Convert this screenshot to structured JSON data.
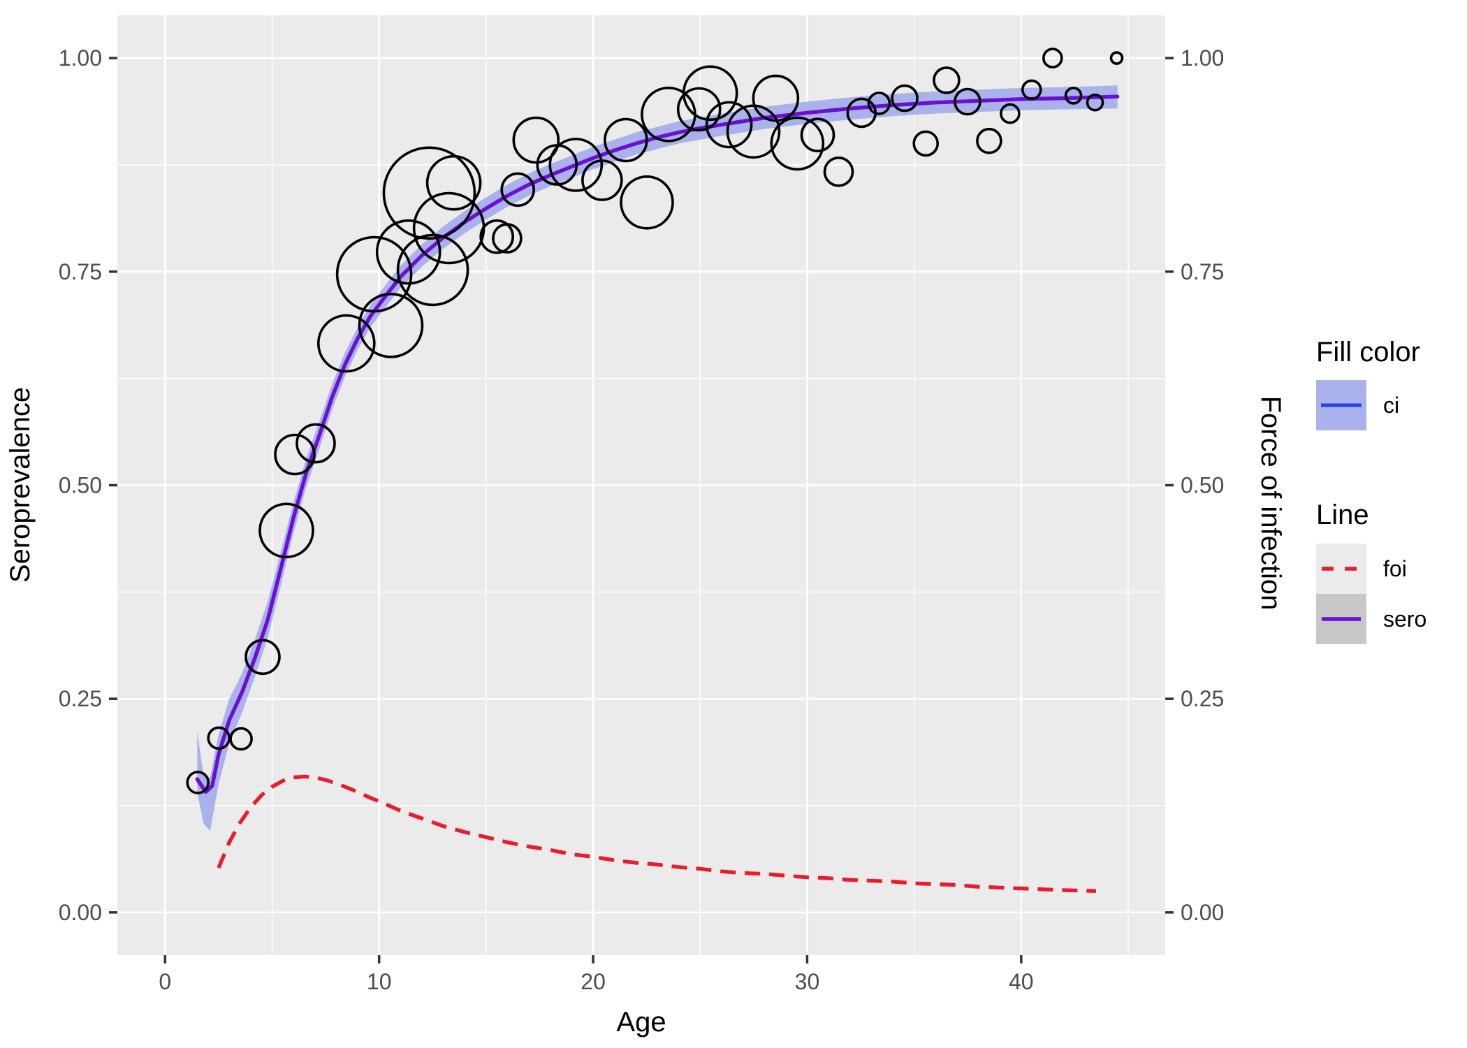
{
  "chart_data": {
    "type": "scatter",
    "description": "Seroprevalence bubbles with fitted sero curve, confidence ribbon and force-of-infection dashed curve",
    "xlabel": "Age",
    "ylabel_left": "Seroprevalence",
    "ylabel_right": "Force of infection",
    "xlim": [
      -2.23,
      46.73
    ],
    "ylim": [
      -0.05,
      1.05
    ],
    "x_ticks": [
      0,
      10,
      20,
      30,
      40
    ],
    "x_tick_labels": [
      "0",
      "10",
      "20",
      "30",
      "40"
    ],
    "x_minor_ticks": [
      5,
      15,
      25,
      35,
      45
    ],
    "y_ticks": [
      0,
      0.25,
      0.5,
      0.75,
      1
    ],
    "y_tick_labels": [
      "0.00",
      "0.25",
      "0.50",
      "0.75",
      "1.00"
    ],
    "y_minor_ticks": [
      0.125,
      0.375,
      0.625,
      0.875
    ],
    "grid": true,
    "legend_position": "right",
    "colors": {
      "panel_bg": "#EBEBEB",
      "grid_major": "#FFFFFF",
      "grid_minor": "#FFFFFF",
      "tick_mark": "#333333",
      "tick_label": "#4D4D4D",
      "axis_title": "#000000",
      "bubble_stroke": "#000000",
      "ribbon_fill": "#A9B2EA",
      "sero_line": "#6B0FD3",
      "foi_line": "#EA1B2C",
      "ci_key_line": "#2E41E0",
      "ci_key_fill": "#A9B2EA",
      "foi_key_bg": "#EBEBEB",
      "sero_key_bg": "#C7C7C7"
    },
    "legend": {
      "fill_title": "Fill color",
      "fill_items": [
        {
          "label": "ci"
        }
      ],
      "line_title": "Line",
      "line_items": [
        {
          "label": "foi",
          "style": "dashed",
          "color": "#EA1B2C"
        },
        {
          "label": "sero",
          "style": "solid",
          "color": "#6B0FD3"
        }
      ]
    },
    "bubbles": [
      {
        "age": 1.53,
        "sero": 0.152,
        "r": 15
      },
      {
        "age": 2.51,
        "sero": 0.204,
        "r": 15
      },
      {
        "age": 3.55,
        "sero": 0.203,
        "r": 15
      },
      {
        "age": 4.56,
        "sero": 0.299,
        "r": 24
      },
      {
        "age": 5.67,
        "sero": 0.447,
        "r": 38
      },
      {
        "age": 6.06,
        "sero": 0.536,
        "r": 28
      },
      {
        "age": 7.04,
        "sero": 0.549,
        "r": 27
      },
      {
        "age": 8.47,
        "sero": 0.666,
        "r": 40
      },
      {
        "age": 9.77,
        "sero": 0.747,
        "r": 53
      },
      {
        "age": 10.55,
        "sero": 0.687,
        "r": 45
      },
      {
        "age": 11.37,
        "sero": 0.773,
        "r": 45
      },
      {
        "age": 12.34,
        "sero": 0.842,
        "r": 65
      },
      {
        "age": 13.49,
        "sero": 0.854,
        "r": 38
      },
      {
        "age": 13.26,
        "sero": 0.801,
        "r": 50
      },
      {
        "age": 12.51,
        "sero": 0.752,
        "r": 50
      },
      {
        "age": 15.5,
        "sero": 0.791,
        "r": 23
      },
      {
        "age": 15.98,
        "sero": 0.789,
        "r": 20
      },
      {
        "age": 16.48,
        "sero": 0.846,
        "r": 23
      },
      {
        "age": 17.33,
        "sero": 0.904,
        "r": 32
      },
      {
        "age": 18.31,
        "sero": 0.875,
        "r": 28
      },
      {
        "age": 19.19,
        "sero": 0.875,
        "r": 37
      },
      {
        "age": 20.42,
        "sero": 0.857,
        "r": 28
      },
      {
        "age": 21.53,
        "sero": 0.904,
        "r": 30
      },
      {
        "age": 22.51,
        "sero": 0.831,
        "r": 37
      },
      {
        "age": 23.52,
        "sero": 0.934,
        "r": 38
      },
      {
        "age": 24.95,
        "sero": 0.94,
        "r": 30
      },
      {
        "age": 25.47,
        "sero": 0.959,
        "r": 38
      },
      {
        "age": 26.35,
        "sero": 0.922,
        "r": 32
      },
      {
        "age": 27.49,
        "sero": 0.914,
        "r": 37
      },
      {
        "age": 28.53,
        "sero": 0.953,
        "r": 32
      },
      {
        "age": 29.54,
        "sero": 0.9,
        "r": 37
      },
      {
        "age": 30.49,
        "sero": 0.91,
        "r": 23
      },
      {
        "age": 31.47,
        "sero": 0.867,
        "r": 20
      },
      {
        "age": 32.54,
        "sero": 0.936,
        "r": 20
      },
      {
        "age": 33.36,
        "sero": 0.947,
        "r": 15
      },
      {
        "age": 34.56,
        "sero": 0.953,
        "r": 18
      },
      {
        "age": 35.54,
        "sero": 0.9,
        "r": 17
      },
      {
        "age": 36.51,
        "sero": 0.974,
        "r": 18
      },
      {
        "age": 37.49,
        "sero": 0.949,
        "r": 18
      },
      {
        "age": 38.5,
        "sero": 0.903,
        "r": 17
      },
      {
        "age": 39.48,
        "sero": 0.935,
        "r": 13
      },
      {
        "age": 40.49,
        "sero": 0.963,
        "r": 13
      },
      {
        "age": 41.47,
        "sero": 1.0,
        "r": 13
      },
      {
        "age": 42.44,
        "sero": 0.956,
        "r": 11
      },
      {
        "age": 43.45,
        "sero": 0.948,
        "r": 11
      },
      {
        "age": 44.46,
        "sero": 1.0,
        "r": 8
      }
    ],
    "sero_line": [
      [
        1.5,
        0.156
      ],
      [
        1.9,
        0.141
      ],
      [
        2.2,
        0.148
      ],
      [
        2.5,
        0.185
      ],
      [
        3.0,
        0.225
      ],
      [
        3.6,
        0.258
      ],
      [
        4.2,
        0.298
      ],
      [
        4.8,
        0.343
      ],
      [
        5.4,
        0.402
      ],
      [
        6.0,
        0.462
      ],
      [
        6.6,
        0.515
      ],
      [
        7.2,
        0.558
      ],
      [
        7.8,
        0.603
      ],
      [
        8.4,
        0.641
      ],
      [
        9.0,
        0.672
      ],
      [
        9.6,
        0.698
      ],
      [
        10.2,
        0.718
      ],
      [
        11,
        0.744
      ],
      [
        12,
        0.769
      ],
      [
        13,
        0.79
      ],
      [
        14,
        0.808
      ],
      [
        15,
        0.824
      ],
      [
        16,
        0.839
      ],
      [
        17,
        0.852
      ],
      [
        18,
        0.863
      ],
      [
        19,
        0.873
      ],
      [
        20,
        0.883
      ],
      [
        21,
        0.892
      ],
      [
        22,
        0.9
      ],
      [
        23,
        0.907
      ],
      [
        24,
        0.913
      ],
      [
        25,
        0.918
      ],
      [
        26,
        0.922
      ],
      [
        27,
        0.926
      ],
      [
        28,
        0.93
      ],
      [
        29,
        0.933
      ],
      [
        30,
        0.936
      ],
      [
        32,
        0.941
      ],
      [
        34,
        0.945
      ],
      [
        36,
        0.948
      ],
      [
        38,
        0.95
      ],
      [
        40,
        0.952
      ],
      [
        42,
        0.953
      ],
      [
        44.5,
        0.955
      ]
    ],
    "ci_ribbon": [
      [
        1.5,
        0.14,
        0.212
      ],
      [
        1.8,
        0.104,
        0.16
      ],
      [
        2.1,
        0.095,
        0.158
      ],
      [
        2.5,
        0.15,
        0.208
      ],
      [
        3.0,
        0.198,
        0.25
      ],
      [
        3.6,
        0.234,
        0.28
      ],
      [
        4.2,
        0.276,
        0.32
      ],
      [
        4.8,
        0.322,
        0.364
      ],
      [
        5.4,
        0.382,
        0.422
      ],
      [
        6.0,
        0.444,
        0.48
      ],
      [
        6.6,
        0.498,
        0.532
      ],
      [
        7.2,
        0.542,
        0.574
      ],
      [
        7.8,
        0.588,
        0.618
      ],
      [
        8.4,
        0.627,
        0.655
      ],
      [
        9.0,
        0.659,
        0.685
      ],
      [
        9.6,
        0.685,
        0.711
      ],
      [
        10.2,
        0.705,
        0.731
      ],
      [
        11,
        0.731,
        0.757
      ],
      [
        12,
        0.756,
        0.782
      ],
      [
        13,
        0.777,
        0.803
      ],
      [
        14,
        0.795,
        0.821
      ],
      [
        15,
        0.811,
        0.837
      ],
      [
        16,
        0.826,
        0.852
      ],
      [
        17,
        0.839,
        0.865
      ],
      [
        18,
        0.85,
        0.876
      ],
      [
        19,
        0.86,
        0.886
      ],
      [
        20,
        0.87,
        0.896
      ],
      [
        22,
        0.887,
        0.913
      ],
      [
        24,
        0.9,
        0.926
      ],
      [
        26,
        0.909,
        0.935
      ],
      [
        28,
        0.917,
        0.943
      ],
      [
        30,
        0.923,
        0.949
      ],
      [
        32,
        0.928,
        0.954
      ],
      [
        34,
        0.932,
        0.958
      ],
      [
        36,
        0.935,
        0.961
      ],
      [
        38,
        0.937,
        0.963
      ],
      [
        40,
        0.939,
        0.965
      ],
      [
        42,
        0.94,
        0.966
      ],
      [
        44.5,
        0.941,
        0.968
      ]
    ],
    "foi_line": [
      [
        2.5,
        0.052
      ],
      [
        3,
        0.082
      ],
      [
        3.5,
        0.105
      ],
      [
        4,
        0.123
      ],
      [
        4.5,
        0.137
      ],
      [
        5,
        0.147
      ],
      [
        5.5,
        0.154
      ],
      [
        6,
        0.158
      ],
      [
        6.5,
        0.159
      ],
      [
        7,
        0.158
      ],
      [
        7.5,
        0.155
      ],
      [
        8,
        0.151
      ],
      [
        8.5,
        0.146
      ],
      [
        9,
        0.141
      ],
      [
        9.5,
        0.135
      ],
      [
        10,
        0.13
      ],
      [
        11,
        0.119
      ],
      [
        12,
        0.11
      ],
      [
        13,
        0.101
      ],
      [
        14,
        0.094
      ],
      [
        15,
        0.088
      ],
      [
        16,
        0.082
      ],
      [
        17,
        0.077
      ],
      [
        18,
        0.073
      ],
      [
        19,
        0.068
      ],
      [
        20,
        0.065
      ],
      [
        21,
        0.061
      ],
      [
        22,
        0.058
      ],
      [
        23,
        0.056
      ],
      [
        24,
        0.053
      ],
      [
        25,
        0.051
      ],
      [
        26,
        0.048
      ],
      [
        27,
        0.046
      ],
      [
        28,
        0.045
      ],
      [
        29,
        0.043
      ],
      [
        30,
        0.041
      ],
      [
        31,
        0.04
      ],
      [
        32,
        0.038
      ],
      [
        33,
        0.037
      ],
      [
        34,
        0.036
      ],
      [
        35,
        0.034
      ],
      [
        36,
        0.033
      ],
      [
        37,
        0.032
      ],
      [
        38,
        0.03
      ],
      [
        39,
        0.029
      ],
      [
        40,
        0.028
      ],
      [
        41,
        0.027
      ],
      [
        42,
        0.026
      ],
      [
        43.5,
        0.025
      ]
    ]
  }
}
